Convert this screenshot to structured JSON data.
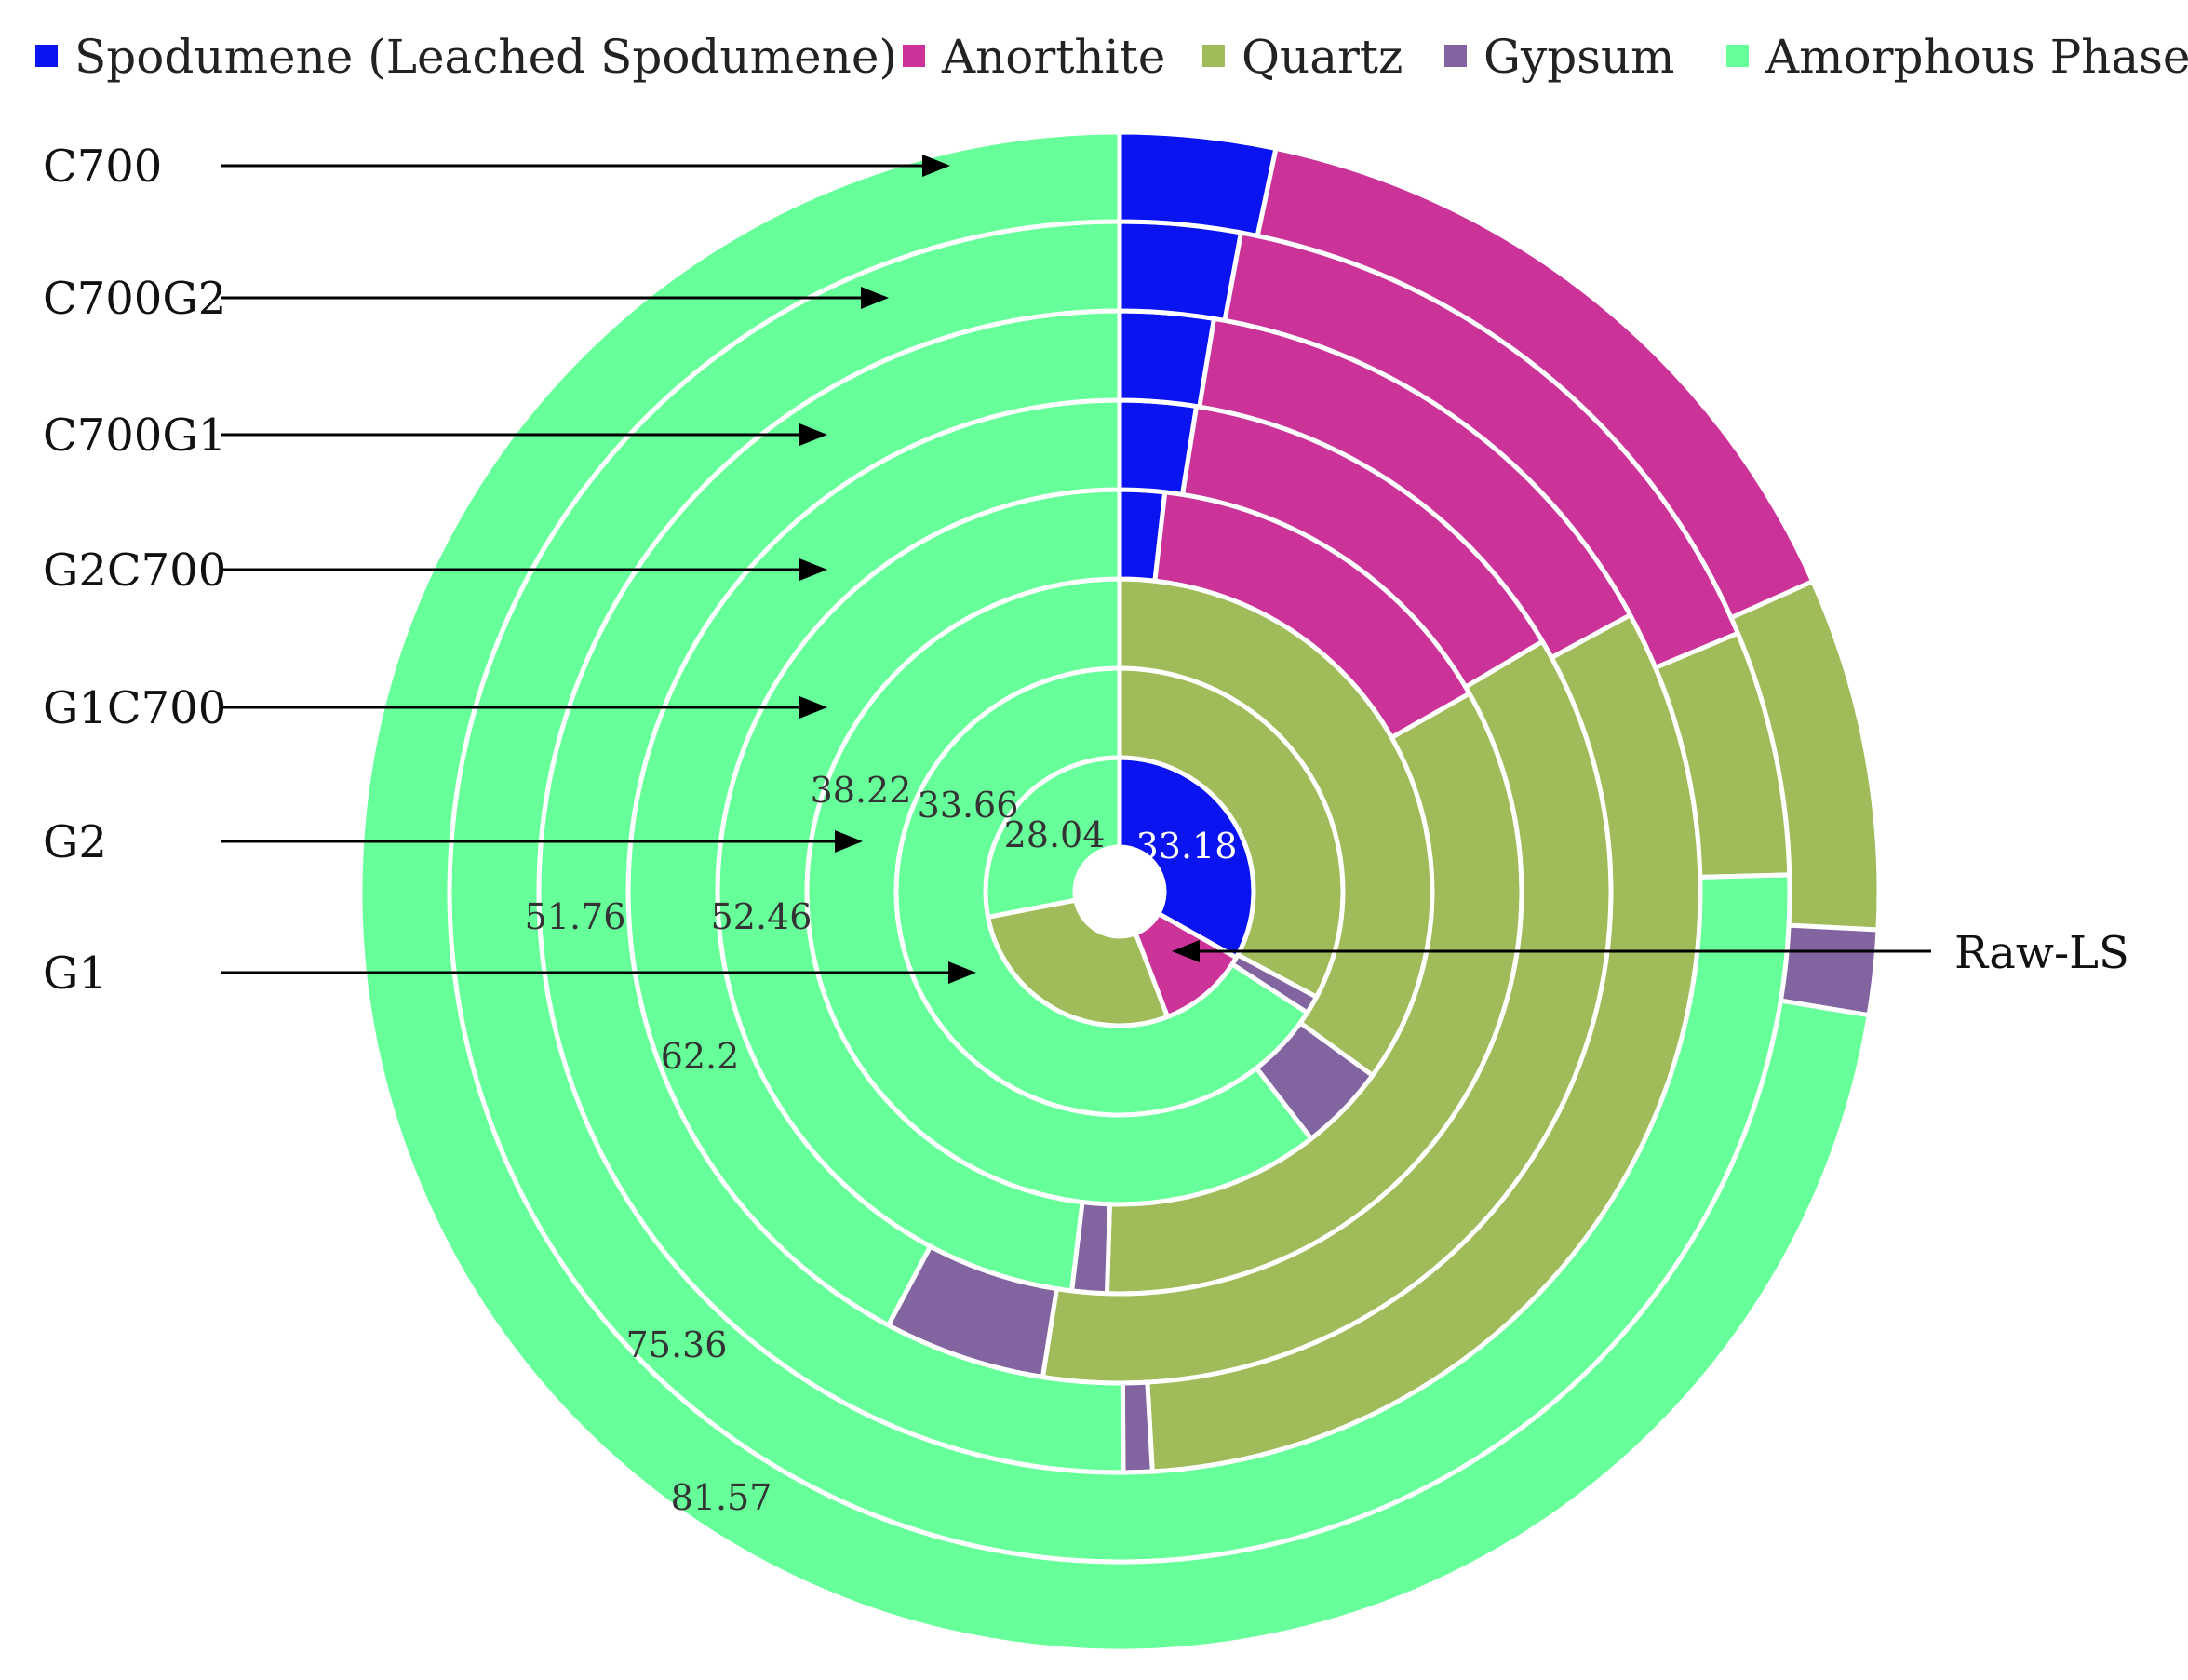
{
  "chart_data": {
    "type": "donut",
    "title": "",
    "legend": {
      "placement": "top",
      "items": [
        {
          "name": "Spodumene (Leached Spodumene)",
          "color": "#0a14f0"
        },
        {
          "name": "Anorthite",
          "color": "#cc3399"
        },
        {
          "name": "Quartz",
          "color": "#9fbb5a"
        },
        {
          "name": "Gypsum",
          "color": "#8264a0"
        },
        {
          "name": "Amorphous Phase",
          "color": "#66ff99"
        }
      ]
    },
    "series": [
      {
        "name": "Raw-LS",
        "values": [
          33.18,
          11.0,
          27.78,
          0,
          28.04
        ]
      },
      {
        "name": "G1",
        "values": [
          0,
          0,
          32.82,
          1.3,
          65.88
        ]
      },
      {
        "name": "G2",
        "values": [
          0,
          0,
          35.0,
          4.5,
          60.5
        ]
      },
      {
        "name": "G1C700",
        "values": [
          1.8,
          15.0,
          33.7,
          1.4,
          48.1
        ]
      },
      {
        "name": "G2C700",
        "values": [
          2.5,
          14.0,
          36.0,
          5.3,
          42.2
        ]
      },
      {
        "name": "C700G1",
        "values": [
          2.6,
          14.5,
          32.0,
          0.8,
          50.1
        ]
      },
      {
        "name": "C700G2",
        "values": [
          2.9,
          15.8,
          5.9,
          0,
          75.4
        ]
      },
      {
        "name": "C700",
        "values": [
          3.3,
          15.0,
          7.5,
          1.8,
          72.4
        ]
      }
    ],
    "data_labels": [
      {
        "ring": "Raw-LS",
        "text": "28.04"
      },
      {
        "ring": "Raw-LS",
        "text": "33.18"
      },
      {
        "ring": "G1",
        "text": "33.66"
      },
      {
        "ring": "G2",
        "text": "38.22"
      },
      {
        "ring": "G1C700",
        "text": "52.46"
      },
      {
        "ring": "G2C700",
        "text": "51.76"
      },
      {
        "ring": "C700G1",
        "text": "62.2"
      },
      {
        "ring": "C700G2",
        "text": "75.36"
      },
      {
        "ring": "C700",
        "text": "81.57"
      }
    ]
  }
}
